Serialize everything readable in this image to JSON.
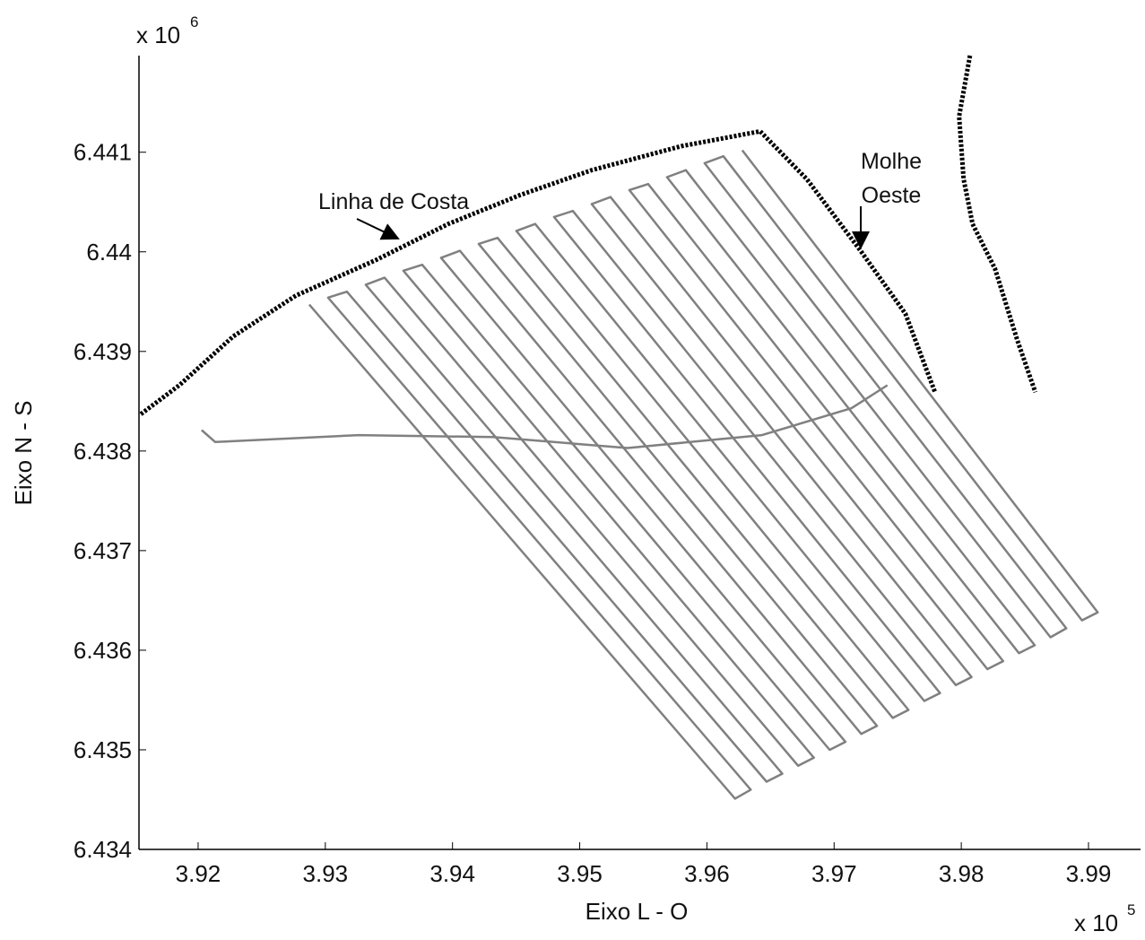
{
  "chart_data": {
    "type": "line",
    "xlabel": "Eixo L - O",
    "ylabel": "Eixo N - S",
    "x_multiplier": {
      "base": "x 10",
      "exponent": "5"
    },
    "y_multiplier": {
      "base": "x 10",
      "exponent": "6"
    },
    "annotations": [
      "Linha de Costa",
      "Molhe",
      "Oeste"
    ],
    "xlim": [
      3.91535,
      3.99409
    ],
    "ylim": [
      6.434,
      6.44197
    ],
    "xticks": [
      3.92,
      3.93,
      3.94,
      3.95,
      3.96,
      3.97,
      3.98,
      3.99
    ],
    "yticks": [
      6.434,
      6.435,
      6.436,
      6.437,
      6.438,
      6.439,
      6.44,
      6.441
    ],
    "series": [
      {
        "color": "#808080",
        "marker": "none",
        "x": [
          3.92874,
          3.96221,
          3.96345,
          3.93022,
          3.9317,
          3.96469,
          3.96593,
          3.93318,
          3.93466,
          3.96717,
          3.96841,
          3.93614,
          3.93762,
          3.96965,
          3.97089,
          3.9391,
          3.94058,
          3.97213,
          3.97337,
          3.94206,
          3.94354,
          3.97461,
          3.97585,
          3.94502,
          3.9465,
          3.97709,
          3.97833,
          3.94798,
          3.94946,
          3.97957,
          3.98081,
          3.95094,
          3.95242,
          3.98205,
          3.98329,
          3.9539,
          3.95538,
          3.98453,
          3.98577,
          3.95686,
          3.95834,
          3.98701,
          3.98825,
          3.95982,
          3.9613,
          3.98949,
          3.99073,
          3.96278
        ],
        "values": [
          6.43947,
          6.43451,
          6.4346,
          6.43954,
          6.4396,
          6.43468,
          6.43476,
          6.43967,
          6.43974,
          6.43484,
          6.43492,
          6.43981,
          6.43987,
          6.435,
          6.43508,
          6.43994,
          6.44001,
          6.43516,
          6.43524,
          6.44008,
          6.44014,
          6.43532,
          6.4354,
          6.44021,
          6.44028,
          6.43549,
          6.43557,
          6.44035,
          6.44041,
          6.43565,
          6.43573,
          6.44048,
          6.44055,
          6.43581,
          6.43589,
          6.44062,
          6.44068,
          6.43597,
          6.43605,
          6.44075,
          6.44082,
          6.43613,
          6.43622,
          6.44089,
          6.44096,
          6.4363,
          6.43638,
          6.44102
        ]
      },
      {
        "color": "#808080",
        "marker": "none",
        "x": [
          3.92028,
          3.92134,
          3.93261,
          3.94319,
          3.95376,
          3.96433,
          3.97137,
          3.97419
        ],
        "values": [
          6.43821,
          6.43809,
          6.43816,
          6.43814,
          6.43803,
          6.43816,
          6.43843,
          6.43866
        ]
      },
      {
        "color": "#000000",
        "marker": "+",
        "x": [
          3.9155,
          3.91852,
          3.92275,
          3.92768,
          3.93402,
          3.93966,
          3.9453,
          3.95094,
          3.95798,
          3.96419,
          3.96785,
          3.97208,
          3.9756,
          3.97793
        ],
        "values": [
          6.43837,
          6.43866,
          6.43915,
          6.43956,
          6.43992,
          6.44028,
          6.44057,
          6.44082,
          6.44106,
          6.44121,
          6.44073,
          6.44001,
          6.43938,
          6.43859
        ]
      },
      {
        "color": "#000000",
        "marker": "+",
        "x": [
          3.98068,
          3.97983,
          3.98018,
          3.98089,
          3.98265,
          3.98441,
          3.98582
        ],
        "values": [
          6.44197,
          6.44136,
          6.44073,
          6.44028,
          6.43983,
          6.43911,
          6.43859
        ]
      }
    ]
  }
}
